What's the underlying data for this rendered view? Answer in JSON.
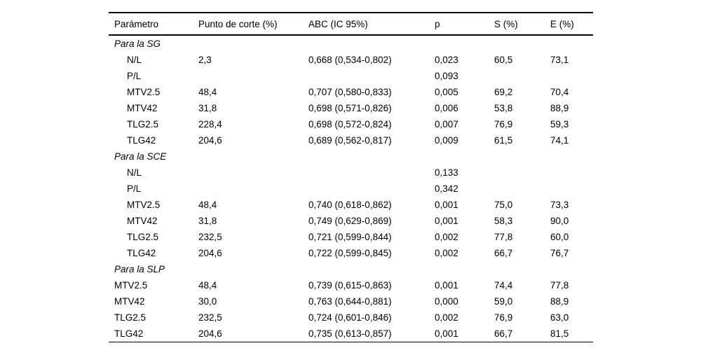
{
  "colors": {
    "background": "#ffffff",
    "text": "#000000",
    "rule": "#000000"
  },
  "table": {
    "columns": [
      "Parámetro",
      "Punto de corte (%)",
      "ABC (IC 95%)",
      "p",
      "S (%)",
      "E (%)"
    ],
    "sections": [
      {
        "title": "Para la SG",
        "indent": true,
        "rows": [
          [
            "N/L",
            "2,3",
            "0,668 (0,534-0,802)",
            "0,023",
            "60,5",
            "73,1"
          ],
          [
            "P/L",
            "",
            "",
            "0,093",
            "",
            ""
          ],
          [
            "MTV2.5",
            "48,4",
            "0,707 (0,580-0,833)",
            "0,005",
            "69,2",
            "70,4"
          ],
          [
            "MTV42",
            "31,8",
            "0,698 (0,571-0,826)",
            "0,006",
            "53,8",
            "88,9"
          ],
          [
            "TLG2.5",
            "228,4",
            "0,698 (0,572-0,824)",
            "0,007",
            "76,9",
            "59,3"
          ],
          [
            "TLG42",
            "204,6",
            "0,689 (0,562-0,817)",
            "0,009",
            "61,5",
            "74,1"
          ]
        ]
      },
      {
        "title": "Para la SCE",
        "indent": true,
        "rows": [
          [
            "N/L",
            "",
            "",
            "0,133",
            "",
            ""
          ],
          [
            "P/L",
            "",
            "",
            "0,342",
            "",
            ""
          ],
          [
            "MTV2.5",
            "48,4",
            "0,740 (0,618-0,862)",
            "0,001",
            "75,0",
            "73,3"
          ],
          [
            "MTV42",
            "31,8",
            "0,749 (0,629-0,869)",
            "0,001",
            "58,3",
            "90,0"
          ],
          [
            "TLG2.5",
            "232,5",
            "0,721 (0,599-0,844)",
            "0,002",
            "77,8",
            "60,0"
          ],
          [
            "TLG42",
            "204,6",
            "0,722 (0,599-0,845)",
            "0,002",
            "66,7",
            "76,7"
          ]
        ]
      },
      {
        "title": "Para la SLP",
        "indent": false,
        "rows": [
          [
            "MTV2.5",
            "48,4",
            "0,739 (0,615-0,863)",
            "0,001",
            "74,4",
            "77,8"
          ],
          [
            "MTV42",
            "30,0",
            "0,763 (0,644-0,881)",
            "0,000",
            "59,0",
            "88,9"
          ],
          [
            "TLG2.5",
            "232,5",
            "0,724 (0,601-0,846)",
            "0,002",
            "76,9",
            "63,0"
          ],
          [
            "TLG42",
            "204,6",
            "0,735 (0,613-0,857)",
            "0,001",
            "66,7",
            "81,5"
          ]
        ]
      }
    ]
  }
}
